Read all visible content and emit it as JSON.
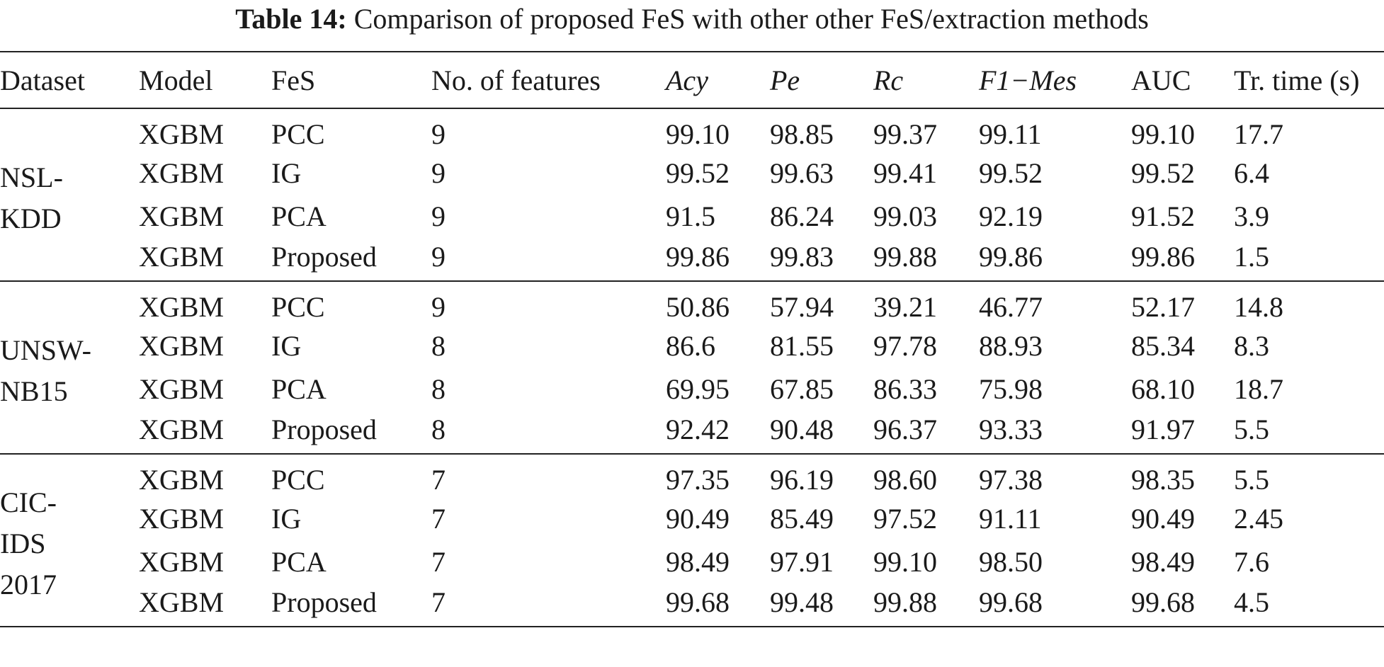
{
  "caption": {
    "label": "Table 14:",
    "text": "Comparison of proposed FeS with other other FeS/extraction methods"
  },
  "columns": {
    "dataset": "Dataset",
    "model": "Model",
    "fes": "FeS",
    "num_features": "No. of features",
    "acy": "Acy",
    "pe": "Pe",
    "rc": "Rc",
    "f1mes": "F1−Mes",
    "auc": "AUC",
    "train_time": "Tr. time (s)"
  },
  "groups": [
    {
      "dataset_lines": [
        "NSL-",
        "KDD"
      ],
      "rows": [
        {
          "model": "XGBM",
          "fes": "PCC",
          "num_features": "9",
          "acy": "99.10",
          "pe": "98.85",
          "rc": "99.37",
          "f1mes": "99.11",
          "auc": "99.10",
          "train_time": "17.7"
        },
        {
          "model": "XGBM",
          "fes": "IG",
          "num_features": "9",
          "acy": "99.52",
          "pe": "99.63",
          "rc": "99.41",
          "f1mes": "99.52",
          "auc": "99.52",
          "train_time": "6.4"
        },
        {
          "model": "XGBM",
          "fes": "PCA",
          "num_features": "9",
          "acy": "91.5",
          "pe": "86.24",
          "rc": "99.03",
          "f1mes": "92.19",
          "auc": "91.52",
          "train_time": "3.9"
        },
        {
          "model": "XGBM",
          "fes": "Proposed",
          "num_features": "9",
          "acy": "99.86",
          "pe": "99.83",
          "rc": "99.88",
          "f1mes": "99.86",
          "auc": "99.86",
          "train_time": "1.5"
        }
      ]
    },
    {
      "dataset_lines": [
        "UNSW-",
        "NB15"
      ],
      "rows": [
        {
          "model": "XGBM",
          "fes": "PCC",
          "num_features": "9",
          "acy": "50.86",
          "pe": "57.94",
          "rc": "39.21",
          "f1mes": "46.77",
          "auc": "52.17",
          "train_time": "14.8"
        },
        {
          "model": "XGBM",
          "fes": "IG",
          "num_features": "8",
          "acy": "86.6",
          "pe": "81.55",
          "rc": "97.78",
          "f1mes": "88.93",
          "auc": "85.34",
          "train_time": "8.3"
        },
        {
          "model": "XGBM",
          "fes": "PCA",
          "num_features": "8",
          "acy": "69.95",
          "pe": "67.85",
          "rc": "86.33",
          "f1mes": "75.98",
          "auc": "68.10",
          "train_time": "18.7"
        },
        {
          "model": "XGBM",
          "fes": "Proposed",
          "num_features": "8",
          "acy": "92.42",
          "pe": "90.48",
          "rc": "96.37",
          "f1mes": "93.33",
          "auc": "91.97",
          "train_time": "5.5"
        }
      ]
    },
    {
      "dataset_lines": [
        "CIC-",
        "IDS",
        "2017"
      ],
      "rows": [
        {
          "model": "XGBM",
          "fes": "PCC",
          "num_features": "7",
          "acy": "97.35",
          "pe": "96.19",
          "rc": "98.60",
          "f1mes": "97.38",
          "auc": "98.35",
          "train_time": "5.5"
        },
        {
          "model": "XGBM",
          "fes": "IG",
          "num_features": "7",
          "acy": "90.49",
          "pe": "85.49",
          "rc": "97.52",
          "f1mes": "91.11",
          "auc": "90.49",
          "train_time": "2.45"
        },
        {
          "model": "XGBM",
          "fes": "PCA",
          "num_features": "7",
          "acy": "98.49",
          "pe": "97.91",
          "rc": "99.10",
          "f1mes": "98.50",
          "auc": "98.49",
          "train_time": "7.6"
        },
        {
          "model": "XGBM",
          "fes": "Proposed",
          "num_features": "7",
          "acy": "99.68",
          "pe": "99.48",
          "rc": "99.88",
          "f1mes": "99.68",
          "auc": "99.68",
          "train_time": "4.5"
        }
      ]
    }
  ]
}
